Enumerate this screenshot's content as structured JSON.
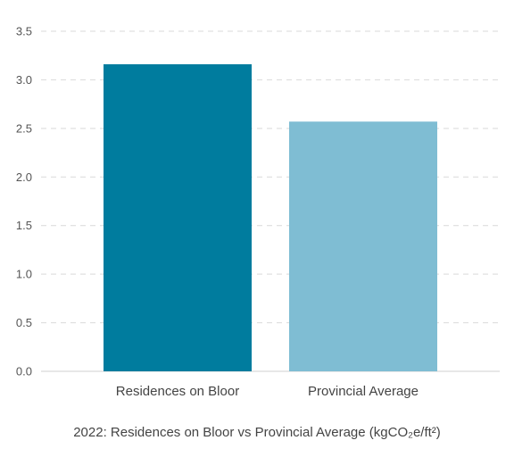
{
  "chart_data": {
    "type": "bar",
    "categories": [
      "Residences on Bloor",
      "Provincial Average"
    ],
    "values": [
      3.16,
      2.57
    ],
    "colors": [
      "#007c9e",
      "#7fbdd3"
    ],
    "ylim": [
      0,
      3.5
    ],
    "yticks": [
      "0.0",
      "0.5",
      "1.0",
      "1.5",
      "2.0",
      "2.5",
      "3.0",
      "3.5"
    ],
    "grid": true,
    "xlabel": "",
    "ylabel": "",
    "title": "2022: Residences on Bloor vs Provincial Average (kgCO₂e/ft²)"
  }
}
